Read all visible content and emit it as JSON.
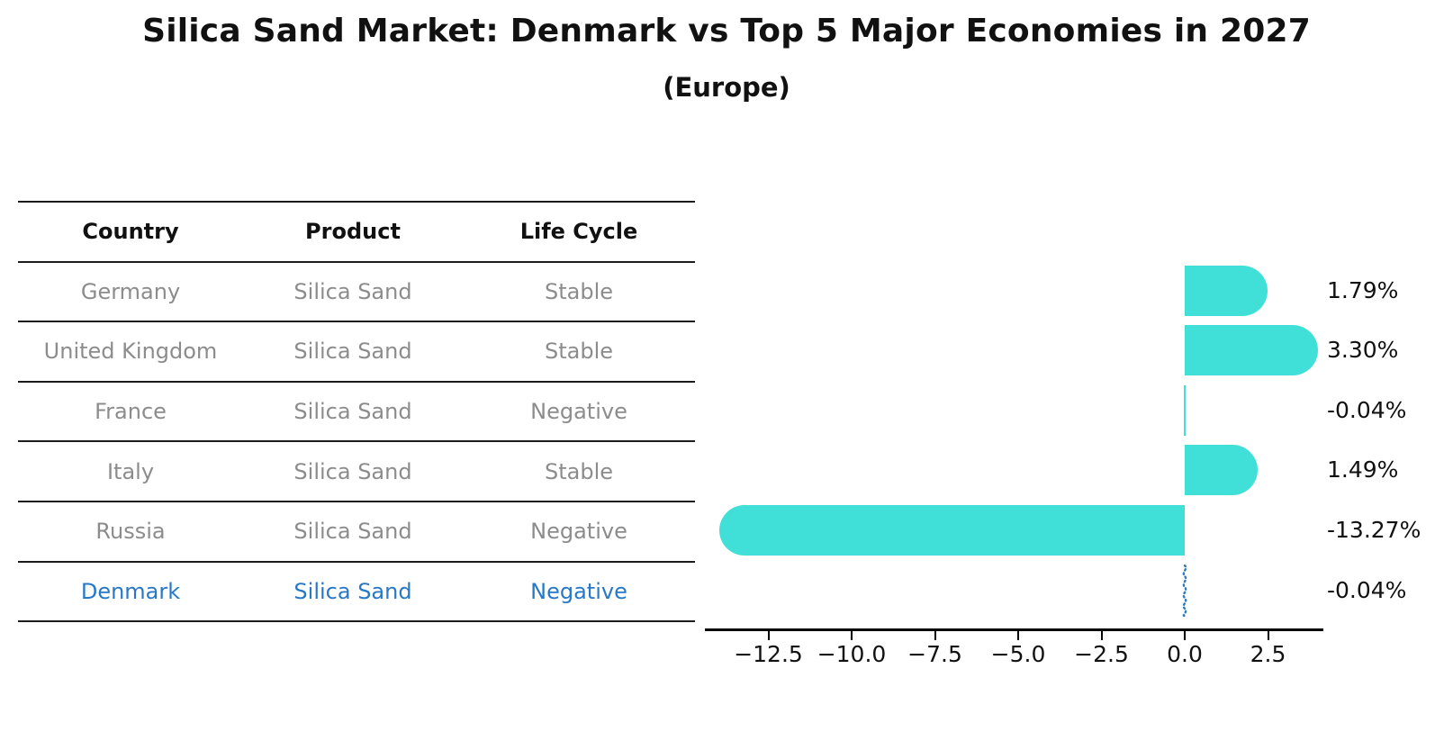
{
  "title": "Silica Sand Market: Denmark vs Top 5 Major Economies in 2027",
  "subtitle": "(Europe)",
  "table": {
    "headers": [
      "Country",
      "Product",
      "Life Cycle"
    ],
    "rows": [
      {
        "country": "Germany",
        "product": "Silica Sand",
        "life_cycle": "Stable",
        "highlight": false
      },
      {
        "country": "United Kingdom",
        "product": "Silica Sand",
        "life_cycle": "Stable",
        "highlight": false
      },
      {
        "country": "France",
        "product": "Silica Sand",
        "life_cycle": "Negative",
        "highlight": false
      },
      {
        "country": "Italy",
        "product": "Silica Sand",
        "life_cycle": "Stable",
        "highlight": false
      },
      {
        "country": "Russia",
        "product": "Silica Sand",
        "life_cycle": "Negative",
        "highlight": false
      },
      {
        "country": "Denmark",
        "product": "Silica Sand",
        "life_cycle": "Negative",
        "highlight": true
      }
    ]
  },
  "chart_data": {
    "type": "bar",
    "orientation": "horizontal",
    "title": "Silica Sand Market: Denmark vs Top 5 Major Economies in 2027 (Europe)",
    "categories": [
      "Germany",
      "United Kingdom",
      "France",
      "Italy",
      "Russia",
      "Denmark"
    ],
    "values": [
      1.79,
      3.3,
      -0.04,
      1.49,
      -13.27,
      -0.04
    ],
    "value_labels": [
      "1.79%",
      "3.30%",
      "-0.04%",
      "1.49%",
      "-13.27%",
      "-0.04%"
    ],
    "x_tick_values": [
      -12.5,
      -10.0,
      -7.5,
      -5.0,
      -2.5,
      0.0,
      2.5
    ],
    "x_tick_labels": [
      "−12.5",
      "−10.0",
      "−7.5",
      "−5.0",
      "−2.5",
      "0.0",
      "2.5"
    ],
    "xlim": [
      -14.4,
      4.2
    ],
    "grid": false,
    "legend": null,
    "bar_color": "#40E0D8",
    "highlight_marker_color": "#2e7bbf"
  },
  "colors": {
    "highlight_text": "#2878c8",
    "muted_text": "#8c8c8c",
    "text": "#111111",
    "bar": "#40E0D8"
  }
}
